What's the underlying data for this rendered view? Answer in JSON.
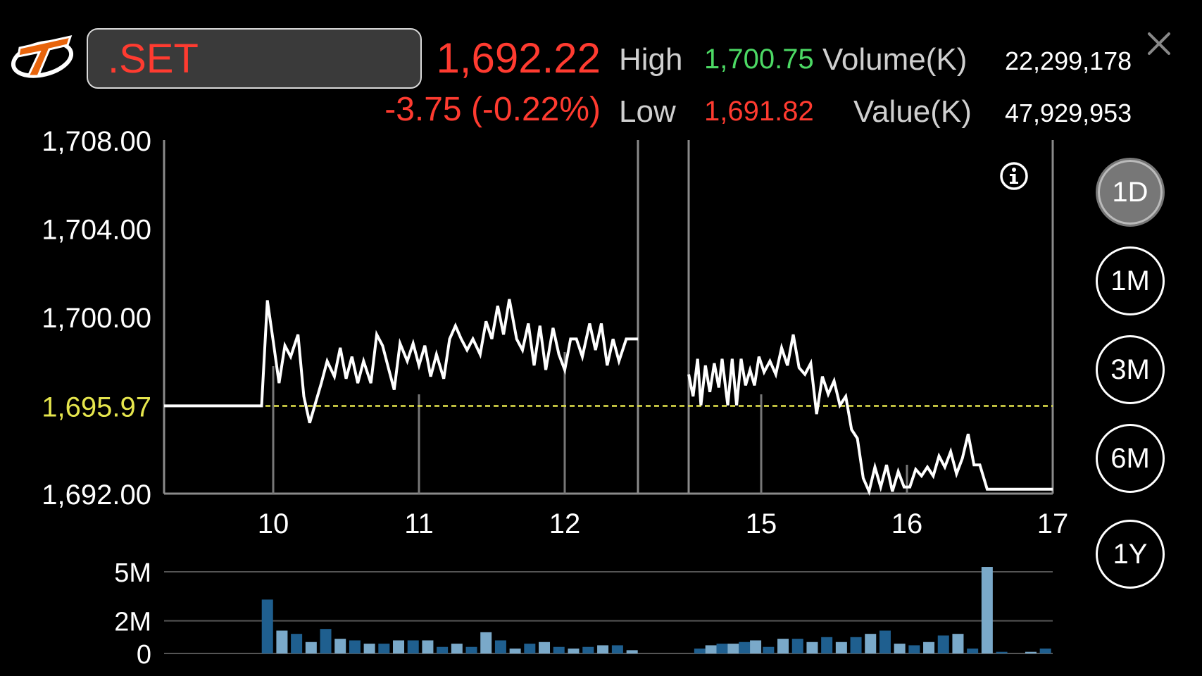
{
  "header": {
    "symbol": ".SET",
    "last_price": "1,692.22",
    "change": "-3.75 (-0.22%)",
    "high_label": "High",
    "high_value": "1,700.75",
    "low_label": "Low",
    "low_value": "1,691.82",
    "volume_label": "Volume(K)",
    "volume_value": "22,299,178",
    "value_label": "Value(K)",
    "value_value": "47,929,953"
  },
  "range_buttons": [
    "1D",
    "1M",
    "3M",
    "6M",
    "1Y"
  ],
  "active_range": "1D",
  "colors": {
    "up": "#4cd964",
    "down": "#ff3b30",
    "prev_close": "#e6e64d",
    "line": "#ffffff",
    "volume_dark": "#1f5f8f",
    "volume_light": "#7aa9c9"
  },
  "chart_data": [
    {
      "type": "line",
      "y_ticks": [
        "1,708.00",
        "1,704.00",
        "1,700.00",
        "1,695.97",
        "1,692.00"
      ],
      "ylim": [
        1692,
        1708
      ],
      "x_ticks": [
        "10",
        "11",
        "12",
        "15",
        "16",
        "17"
      ],
      "reference_line": 1695.97,
      "segments": [
        {
          "x": [
            9.25,
            9.92,
            9.96,
            10.0,
            10.04,
            10.08,
            10.12,
            10.17,
            10.21,
            10.25,
            10.33,
            10.37,
            10.42,
            10.46,
            10.5,
            10.54,
            10.58,
            10.62,
            10.67,
            10.71,
            10.75,
            10.79,
            10.83,
            10.87,
            10.92,
            10.96,
            11.0,
            11.04,
            11.08,
            11.12,
            11.17,
            11.21,
            11.25,
            11.29,
            11.33,
            11.37,
            11.42,
            11.46,
            11.5,
            11.54,
            11.58,
            11.62,
            11.67,
            11.71,
            11.75,
            11.79,
            11.83,
            11.87,
            11.92,
            11.96,
            12.0,
            12.04,
            12.08,
            12.12,
            12.17,
            12.21,
            12.25,
            12.29,
            12.33,
            12.37,
            12.42,
            12.5
          ],
          "y": [
            1695.97,
            1695.97,
            1700.75,
            1698.9,
            1697.0,
            1698.7,
            1698.2,
            1699.2,
            1696.4,
            1695.2,
            1697.0,
            1698.0,
            1697.3,
            1698.6,
            1697.2,
            1698.2,
            1697.0,
            1698.0,
            1697.0,
            1699.2,
            1698.7,
            1697.7,
            1696.7,
            1698.8,
            1698.0,
            1698.8,
            1697.8,
            1698.7,
            1697.3,
            1698.3,
            1697.2,
            1699.0,
            1699.6,
            1699.0,
            1698.5,
            1699.0,
            1698.3,
            1699.8,
            1699.0,
            1700.5,
            1699.2,
            1700.8,
            1699.0,
            1698.5,
            1699.7,
            1697.8,
            1699.6,
            1697.6,
            1699.5,
            1698.3,
            1697.6,
            1699.0,
            1699.0,
            1698.2,
            1699.7,
            1698.5,
            1699.7,
            1697.8,
            1699.0,
            1698.0,
            1699.0,
            1699.0
          ]
        },
        {
          "x": [
            14.35,
            14.39,
            14.43,
            14.46,
            14.5,
            14.54,
            14.58,
            14.62,
            14.65,
            14.7,
            14.74,
            14.78,
            14.82,
            14.86,
            14.9,
            14.94,
            14.98,
            15.02,
            15.06,
            15.1,
            15.14,
            15.18,
            15.22,
            15.26,
            15.3,
            15.34,
            15.38,
            15.42,
            15.46,
            15.5,
            15.54,
            15.58,
            15.62,
            15.66,
            15.7,
            15.74,
            15.78,
            15.82,
            15.86,
            15.9,
            15.94,
            15.98,
            16.02,
            16.06,
            16.1,
            16.14,
            16.18,
            16.22,
            16.26,
            16.3,
            16.34,
            16.38,
            16.42,
            16.46,
            16.5,
            16.55,
            16.6,
            16.65,
            17.0
          ],
          "y": [
            1697.4,
            1696.4,
            1698.1,
            1696.0,
            1697.8,
            1696.6,
            1697.9,
            1696.8,
            1698.1,
            1696.0,
            1698.1,
            1696.0,
            1698.1,
            1696.9,
            1697.6,
            1696.9,
            1698.2,
            1697.5,
            1698.0,
            1697.4,
            1698.6,
            1697.8,
            1699.2,
            1697.7,
            1697.4,
            1697.9,
            1695.6,
            1697.3,
            1696.5,
            1697.1,
            1696.0,
            1696.4,
            1694.9,
            1694.5,
            1692.7,
            1692.1,
            1693.2,
            1692.3,
            1693.3,
            1692.1,
            1693.0,
            1692.3,
            1692.3,
            1693.1,
            1692.8,
            1693.2,
            1692.8,
            1693.7,
            1693.2,
            1693.9,
            1692.9,
            1693.6,
            1694.7,
            1693.3,
            1693.3,
            1692.2,
            1692.2,
            1692.2,
            1692.2
          ]
        }
      ]
    },
    {
      "type": "bar",
      "y_ticks": [
        "5M",
        "2M",
        "0"
      ],
      "ylim": [
        0,
        5.3
      ],
      "x": [
        9.96,
        10.06,
        10.16,
        10.26,
        10.36,
        10.46,
        10.56,
        10.66,
        10.76,
        10.86,
        10.96,
        11.06,
        11.16,
        11.26,
        11.36,
        11.46,
        11.56,
        11.66,
        11.76,
        11.86,
        11.96,
        12.06,
        12.16,
        12.26,
        12.36,
        12.46,
        14.45,
        14.55,
        14.65,
        14.75,
        14.85,
        14.95,
        15.05,
        15.15,
        15.25,
        15.35,
        15.45,
        15.55,
        15.65,
        15.75,
        15.85,
        15.95,
        16.05,
        16.15,
        16.25,
        16.35,
        16.45,
        16.55,
        16.65,
        16.85,
        16.95
      ],
      "values": [
        3.3,
        1.4,
        1.2,
        0.7,
        1.5,
        0.9,
        0.8,
        0.6,
        0.6,
        0.8,
        0.8,
        0.8,
        0.4,
        0.6,
        0.4,
        1.3,
        0.8,
        0.3,
        0.6,
        0.7,
        0.4,
        0.3,
        0.4,
        0.5,
        0.5,
        0.2,
        0.3,
        0.5,
        0.6,
        0.6,
        0.7,
        0.8,
        0.4,
        0.9,
        0.9,
        0.7,
        1.0,
        0.7,
        1.0,
        1.2,
        1.4,
        0.6,
        0.5,
        0.7,
        1.1,
        1.2,
        0.3,
        5.3,
        0.1,
        0.1,
        0.3
      ]
    }
  ]
}
